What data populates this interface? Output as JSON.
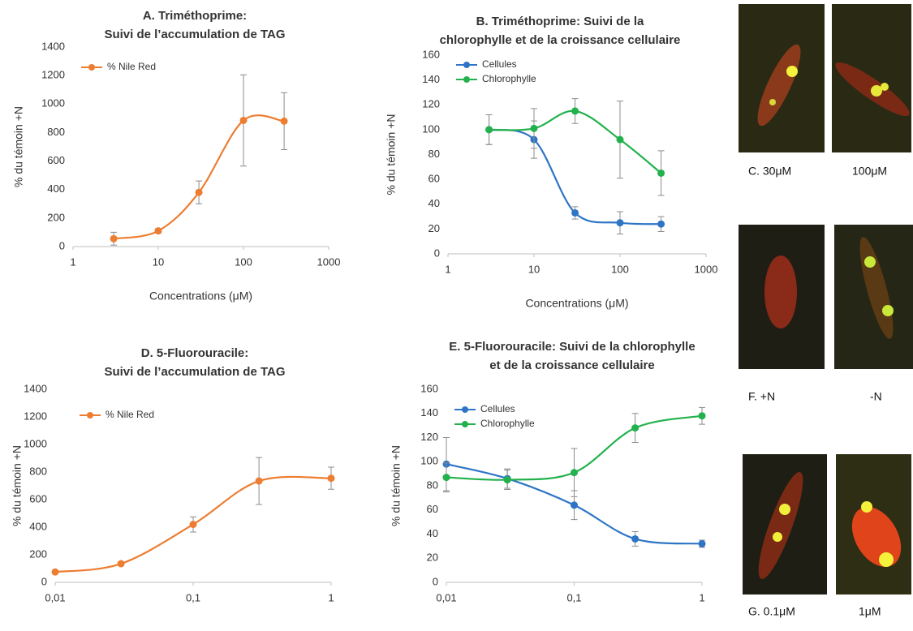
{
  "chart_data": [
    {
      "type": "line",
      "title": [
        "A.  Triméthoprime:",
        "Suivi de l’accumulation de TAG"
      ],
      "x_label": "Concentrations (μM)",
      "y_label": "% du témoin +N",
      "log_x": true,
      "legend": "upper left",
      "x": [
        3,
        10,
        30,
        100,
        300
      ],
      "xlim": [
        1,
        1000
      ],
      "xticks": [
        1,
        10,
        100,
        1000
      ],
      "ylim": [
        0,
        1400
      ],
      "yticks": [
        0,
        200,
        400,
        600,
        800,
        1000,
        1200,
        1400
      ],
      "series": [
        {
          "name": "% Nile Red",
          "color": "#ed7d31",
          "values": [
            55,
            110,
            380,
            885,
            880
          ],
          "errors": [
            45,
            15,
            80,
            320,
            200
          ]
        }
      ]
    },
    {
      "type": "line",
      "title": [
        "B.  Triméthoprime: Suivi de la",
        "chlorophylle et de la croissance cellulaire"
      ],
      "x_label": "Concentrations (μM)",
      "y_label": "% du témoin +N",
      "log_x": true,
      "legend": "upper left",
      "x": [
        3,
        10,
        30,
        100,
        300
      ],
      "xlim": [
        1,
        1000
      ],
      "xticks": [
        1,
        10,
        100,
        1000
      ],
      "ylim": [
        0,
        160
      ],
      "yticks": [
        0,
        20,
        40,
        60,
        80,
        100,
        120,
        140,
        160
      ],
      "series": [
        {
          "name": "Cellules",
          "color": "#2e75c6",
          "values": [
            100,
            92,
            33,
            25,
            24
          ],
          "errors": [
            12,
            15,
            5,
            9,
            6
          ]
        },
        {
          "name": "Chlorophylle",
          "color": "#22b14c",
          "values": [
            100,
            101,
            115,
            92,
            65
          ],
          "errors": [
            12,
            16,
            10,
            31,
            18
          ]
        }
      ]
    },
    {
      "type": "line",
      "title": [
        "D.  5-Fluorouracile:",
        "Suivi de l’accumulation de TAG"
      ],
      "x_label": "Concentrations (μM)",
      "y_label": "% du témoin +N",
      "log_x": true,
      "legend": "upper left",
      "x": [
        0.01,
        0.03,
        0.1,
        0.3,
        1
      ],
      "xlim": [
        0.01,
        1
      ],
      "xticks": [
        {
          "value": 0.01,
          "label": "0,01"
        },
        {
          "value": 0.1,
          "label": "0,1"
        },
        1
      ],
      "ylim": [
        0,
        1400
      ],
      "yticks": [
        0,
        200,
        400,
        600,
        800,
        1000,
        1200,
        1400
      ],
      "series": [
        {
          "name": "% Nile Red",
          "color": "#ed7d31",
          "values": [
            75,
            135,
            420,
            735,
            755
          ],
          "errors": [
            null,
            null,
            55,
            170,
            80
          ]
        }
      ]
    },
    {
      "type": "line",
      "title": [
        "E.  5-Fluorouracile: Suivi de la chlorophylle",
        "et de la croissance cellulaire"
      ],
      "x_label": "Concentrations (μM)",
      "y_label": "% du témoin +N",
      "log_x": true,
      "legend": "upper left",
      "x": [
        0.01,
        0.03,
        0.1,
        0.3,
        1
      ],
      "xlim": [
        0.01,
        1
      ],
      "xticks": [
        {
          "value": 0.01,
          "label": "0,01"
        },
        {
          "value": 0.1,
          "label": "0,1"
        },
        1
      ],
      "ylim": [
        0,
        160
      ],
      "yticks": [
        0,
        20,
        40,
        60,
        80,
        100,
        120,
        140,
        160
      ],
      "series": [
        {
          "name": "Cellules",
          "color": "#2e75c6",
          "values": [
            98,
            86,
            64,
            36,
            32
          ],
          "errors": [
            22,
            8,
            12,
            6,
            3
          ]
        },
        {
          "name": "Chlorophylle",
          "color": "#22b14c",
          "values": [
            87,
            85,
            91,
            128,
            138
          ],
          "errors": [
            12,
            8,
            20,
            12,
            7
          ]
        }
      ]
    }
  ],
  "image_captions": [
    "C.  30μM",
    "100μM",
    "F.  +N",
    "-N",
    "G.  0.1μM",
    "1μM"
  ]
}
